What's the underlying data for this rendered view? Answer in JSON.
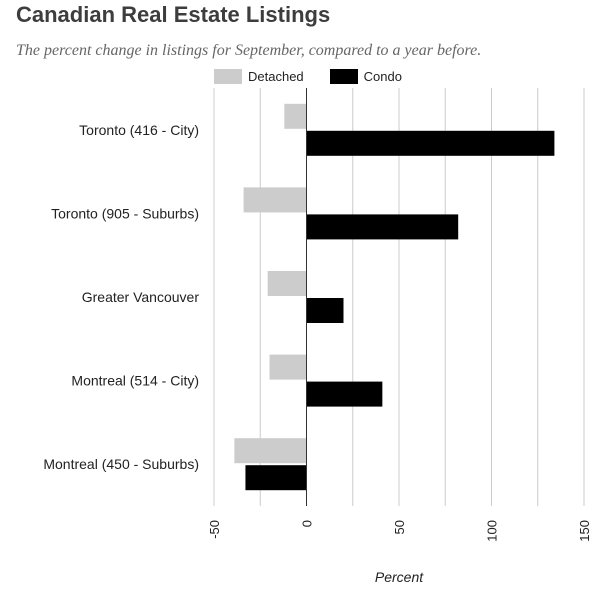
{
  "chart_data": {
    "type": "bar",
    "orientation": "horizontal",
    "title": "Canadian Real Estate Listings",
    "subtitle": "The percent change in listings for September, compared to a year before.",
    "xlabel": "Percent",
    "ylabel": "",
    "categories": [
      "Toronto (416 - City)",
      "Toronto (905 - Suburbs)",
      "Greater Vancouver",
      "Montreal (514 - City)",
      "Montreal (450 - Suburbs)"
    ],
    "series": [
      {
        "name": "Detached",
        "color": "#cccccc",
        "values": [
          -12,
          -34,
          -21,
          -20,
          -39
        ]
      },
      {
        "name": "Condo",
        "color": "#000000",
        "values": [
          134,
          82,
          20,
          41,
          -33
        ]
      }
    ],
    "xlim": [
      -50,
      150
    ],
    "xticks": [
      "-50",
      "0",
      "50",
      "100",
      "150"
    ],
    "tick_rotation": "vertical",
    "grid": true,
    "legend_position": "top"
  }
}
